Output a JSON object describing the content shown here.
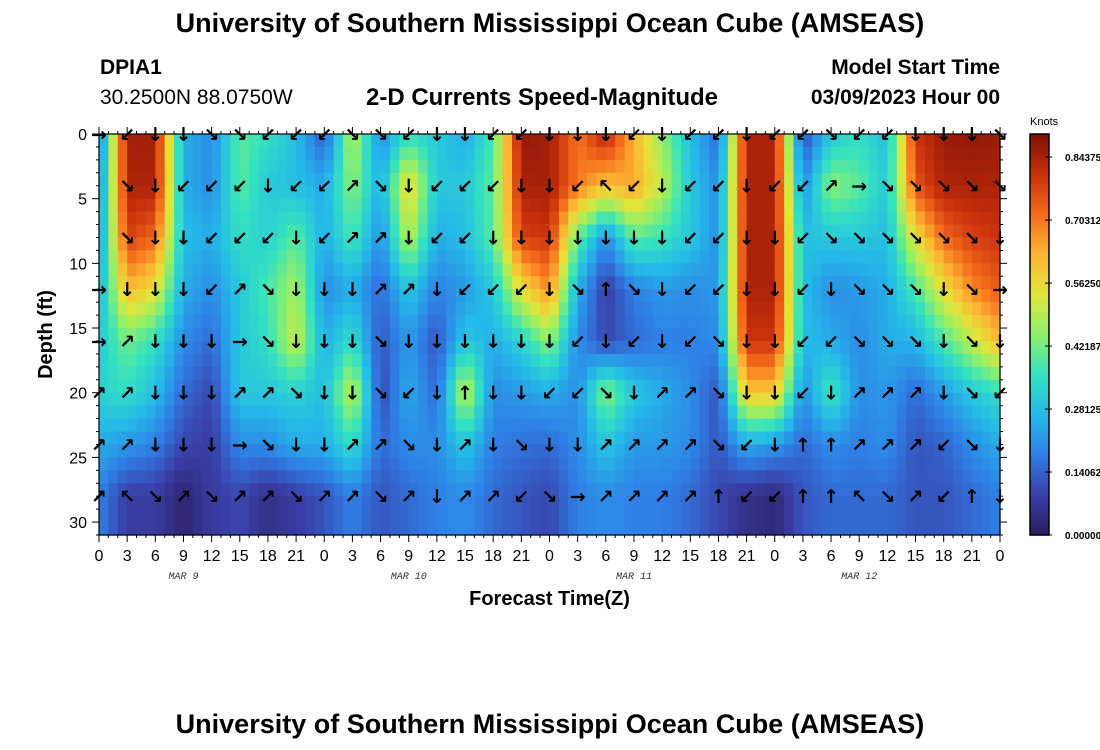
{
  "header": {
    "title": "University of Southern Mississippi Ocean Cube (AMSEAS)",
    "station_id": "DPIA1",
    "station_coords": "30.2500N  88.0750W",
    "plot_title": "2-D Currents Speed-Magnitude",
    "model_start_label": "Model Start Time",
    "model_start_value": "03/09/2023 Hour 00"
  },
  "footer": {
    "title": "University of Southern Mississippi Ocean Cube (AMSEAS)"
  },
  "colors": {
    "scale": [
      "#2a1e5e",
      "#3a3fa8",
      "#2f7fe6",
      "#25b9e8",
      "#34e2c0",
      "#8ef06a",
      "#e2e53a",
      "#fdb532",
      "#f46a1c",
      "#c8300c",
      "#7d0f06"
    ]
  },
  "chart_data": {
    "type": "heatmap",
    "title": "2-D Currents Speed-Magnitude",
    "xlabel": "Forecast Time(Z)",
    "ylabel": "Depth (ft)",
    "x_tick_labels": [
      "0",
      "3",
      "6",
      "9",
      "12",
      "15",
      "18",
      "21",
      "0",
      "3",
      "6",
      "9",
      "12",
      "15",
      "18",
      "21",
      "0",
      "3",
      "6",
      "9",
      "12",
      "15",
      "18",
      "21",
      "0",
      "3",
      "6",
      "9",
      "12",
      "15",
      "18",
      "21",
      "0"
    ],
    "date_labels": [
      {
        "label": "MAR 9",
        "hour": 9
      },
      {
        "label": "MAR 10",
        "hour": 33
      },
      {
        "label": "MAR 11",
        "hour": 57
      },
      {
        "label": "MAR 12",
        "hour": 81
      }
    ],
    "xlim": [
      0,
      96
    ],
    "y_ticks": [
      0,
      5,
      10,
      15,
      20,
      25,
      30
    ],
    "ylim": [
      0,
      31
    ],
    "colorbar": {
      "unit": "Knots",
      "tick_labels": [
        "0.84375",
        "0.70312",
        "0.56250",
        "0.42187",
        "0.28125",
        "0.14062",
        "0.00000"
      ],
      "range": [
        0,
        0.8953
      ]
    },
    "depth_rows": [
      0,
      4,
      8,
      12,
      16,
      20,
      24,
      28
    ],
    "speed_nodes": [
      [
        0.15,
        0.85,
        0.85,
        0.25,
        0.2,
        0.4,
        0.35,
        0.28,
        0.12,
        0.5,
        0.2,
        0.35,
        0.3,
        0.25,
        0.38,
        0.87,
        0.85,
        0.7,
        0.84,
        0.62,
        0.45,
        0.28,
        0.15,
        0.84,
        0.84,
        0.1,
        0.3,
        0.35,
        0.28,
        0.8,
        0.86,
        0.87,
        0.86
      ],
      [
        0.18,
        0.84,
        0.84,
        0.25,
        0.2,
        0.4,
        0.3,
        0.28,
        0.25,
        0.45,
        0.25,
        0.58,
        0.3,
        0.3,
        0.4,
        0.84,
        0.85,
        0.7,
        0.6,
        0.65,
        0.5,
        0.3,
        0.2,
        0.84,
        0.84,
        0.2,
        0.45,
        0.4,
        0.3,
        0.75,
        0.84,
        0.84,
        0.84
      ],
      [
        0.2,
        0.78,
        0.72,
        0.28,
        0.25,
        0.35,
        0.32,
        0.4,
        0.25,
        0.38,
        0.2,
        0.5,
        0.25,
        0.28,
        0.4,
        0.78,
        0.8,
        0.4,
        0.2,
        0.4,
        0.36,
        0.3,
        0.2,
        0.84,
        0.84,
        0.28,
        0.3,
        0.3,
        0.28,
        0.55,
        0.72,
        0.78,
        0.8
      ],
      [
        0.25,
        0.62,
        0.55,
        0.25,
        0.2,
        0.3,
        0.38,
        0.48,
        0.2,
        0.25,
        0.15,
        0.3,
        0.18,
        0.22,
        0.3,
        0.55,
        0.68,
        0.25,
        0.08,
        0.18,
        0.22,
        0.2,
        0.22,
        0.84,
        0.84,
        0.28,
        0.2,
        0.22,
        0.25,
        0.38,
        0.55,
        0.68,
        0.74
      ],
      [
        0.3,
        0.42,
        0.35,
        0.2,
        0.15,
        0.3,
        0.35,
        0.52,
        0.25,
        0.35,
        0.12,
        0.22,
        0.12,
        0.3,
        0.25,
        0.32,
        0.45,
        0.2,
        0.1,
        0.15,
        0.18,
        0.18,
        0.2,
        0.8,
        0.8,
        0.28,
        0.25,
        0.2,
        0.25,
        0.26,
        0.38,
        0.5,
        0.62
      ],
      [
        0.32,
        0.35,
        0.28,
        0.15,
        0.1,
        0.3,
        0.3,
        0.32,
        0.28,
        0.52,
        0.1,
        0.25,
        0.15,
        0.52,
        0.2,
        0.22,
        0.25,
        0.2,
        0.45,
        0.3,
        0.25,
        0.2,
        0.12,
        0.6,
        0.6,
        0.2,
        0.38,
        0.2,
        0.22,
        0.15,
        0.22,
        0.3,
        0.35
      ],
      [
        0.25,
        0.22,
        0.18,
        0.1,
        0.08,
        0.2,
        0.2,
        0.25,
        0.25,
        0.35,
        0.15,
        0.2,
        0.2,
        0.3,
        0.18,
        0.16,
        0.15,
        0.2,
        0.3,
        0.22,
        0.22,
        0.2,
        0.12,
        0.25,
        0.22,
        0.15,
        0.2,
        0.18,
        0.2,
        0.12,
        0.14,
        0.2,
        0.25
      ],
      [
        0.18,
        0.08,
        0.08,
        0.02,
        0.08,
        0.1,
        0.05,
        0.08,
        0.12,
        0.18,
        0.12,
        0.15,
        0.18,
        0.2,
        0.15,
        0.12,
        0.1,
        0.18,
        0.2,
        0.18,
        0.18,
        0.15,
        0.1,
        0.05,
        0.03,
        0.12,
        0.15,
        0.15,
        0.15,
        0.12,
        0.12,
        0.15,
        0.18
      ]
    ],
    "arrow_rows": [
      [
        "→",
        "↙",
        "↓",
        "↓",
        "↘",
        "↘",
        "↙",
        "↙",
        "↙",
        "↘",
        "↘",
        "↙",
        "↓",
        "↓",
        "↙",
        "↙",
        "↓",
        "↓",
        "↓",
        "↙",
        "↓",
        "↙",
        "↙",
        "↓",
        "↙",
        "↙",
        "↘",
        "↙",
        "↙",
        "↓",
        "↓",
        "↓",
        "↘"
      ],
      [
        "",
        "↘",
        "↓",
        "↙",
        "↙",
        "↙",
        "↓",
        "↙",
        "↙",
        "↗",
        "↘",
        "↓",
        "↙",
        "↙",
        "↙",
        "↓",
        "↓",
        "↙",
        "↖",
        "↙",
        "↓",
        "↙",
        "↙",
        "↓",
        "↙",
        "↙",
        "↗",
        "→",
        "↘",
        "↘",
        "↘",
        "↘",
        "↘"
      ],
      [
        "",
        "↘",
        "↓",
        "↓",
        "↙",
        "↙",
        "↙",
        "↓",
        "↙",
        "↗",
        "↗",
        "↓",
        "↙",
        "↙",
        "↓",
        "↓",
        "↓",
        "↓",
        "↓",
        "↓",
        "↓",
        "↙",
        "↙",
        "↓",
        "↓",
        "↙",
        "↘",
        "↘",
        "↘",
        "↘",
        "↘",
        "↘",
        "↓"
      ],
      [
        "→",
        "↓",
        "↓",
        "↓",
        "↙",
        "↗",
        "↘",
        "↓",
        "↓",
        "↓",
        "↗",
        "↗",
        "↓",
        "↙",
        "↙",
        "↙",
        "↓",
        "↘",
        "↑",
        "↘",
        "↓",
        "↙",
        "↙",
        "↓",
        "↓",
        "↙",
        "↓",
        "↘",
        "↘",
        "↘",
        "↓",
        "↘",
        "→"
      ],
      [
        "→",
        "↗",
        "↓",
        "↓",
        "↓",
        "→",
        "↘",
        "↓",
        "↓",
        "↓",
        "↘",
        "↓",
        "↓",
        "↓",
        "↓",
        "↓",
        "↓",
        "↙",
        "↓",
        "↙",
        "↓",
        "↙",
        "↘",
        "↓",
        "↓",
        "↙",
        "↙",
        "↘",
        "↘",
        "↘",
        "↓",
        "↘",
        "↓"
      ],
      [
        "↗",
        "↗",
        "↓",
        "↓",
        "↓",
        "↗",
        "↗",
        "↘",
        "↓",
        "↓",
        "↘",
        "↙",
        "↓",
        "↑",
        "↓",
        "↓",
        "↙",
        "↙",
        "↘",
        "↓",
        "↗",
        "↗",
        "↘",
        "↓",
        "↓",
        "↙",
        "↓",
        "↗",
        "↗",
        "↗",
        "↓",
        "↘",
        "↙"
      ],
      [
        "↗",
        "↗",
        "↓",
        "↓",
        "↓",
        "→",
        "↘",
        "↓",
        "↓",
        "↗",
        "↗",
        "↘",
        "↓",
        "↗",
        "↓",
        "↘",
        "↓",
        "↓",
        "↗",
        "↗",
        "↗",
        "↗",
        "↘",
        "↙",
        "↓",
        "↑",
        "↑",
        "↗",
        "↗",
        "↗",
        "↙",
        "↘",
        "↓"
      ],
      [
        "↗",
        "↖",
        "↘",
        "↗",
        "↘",
        "↗",
        "↗",
        "↘",
        "↗",
        "↗",
        "↘",
        "↗",
        "↓",
        "↗",
        "↗",
        "↙",
        "↘",
        "→",
        "↗",
        "↗",
        "↗",
        "↗",
        "↑",
        "↙",
        "↙",
        "↑",
        "↑",
        "↖",
        "↘",
        "↗",
        "↙",
        "↑",
        "↓"
      ]
    ]
  }
}
